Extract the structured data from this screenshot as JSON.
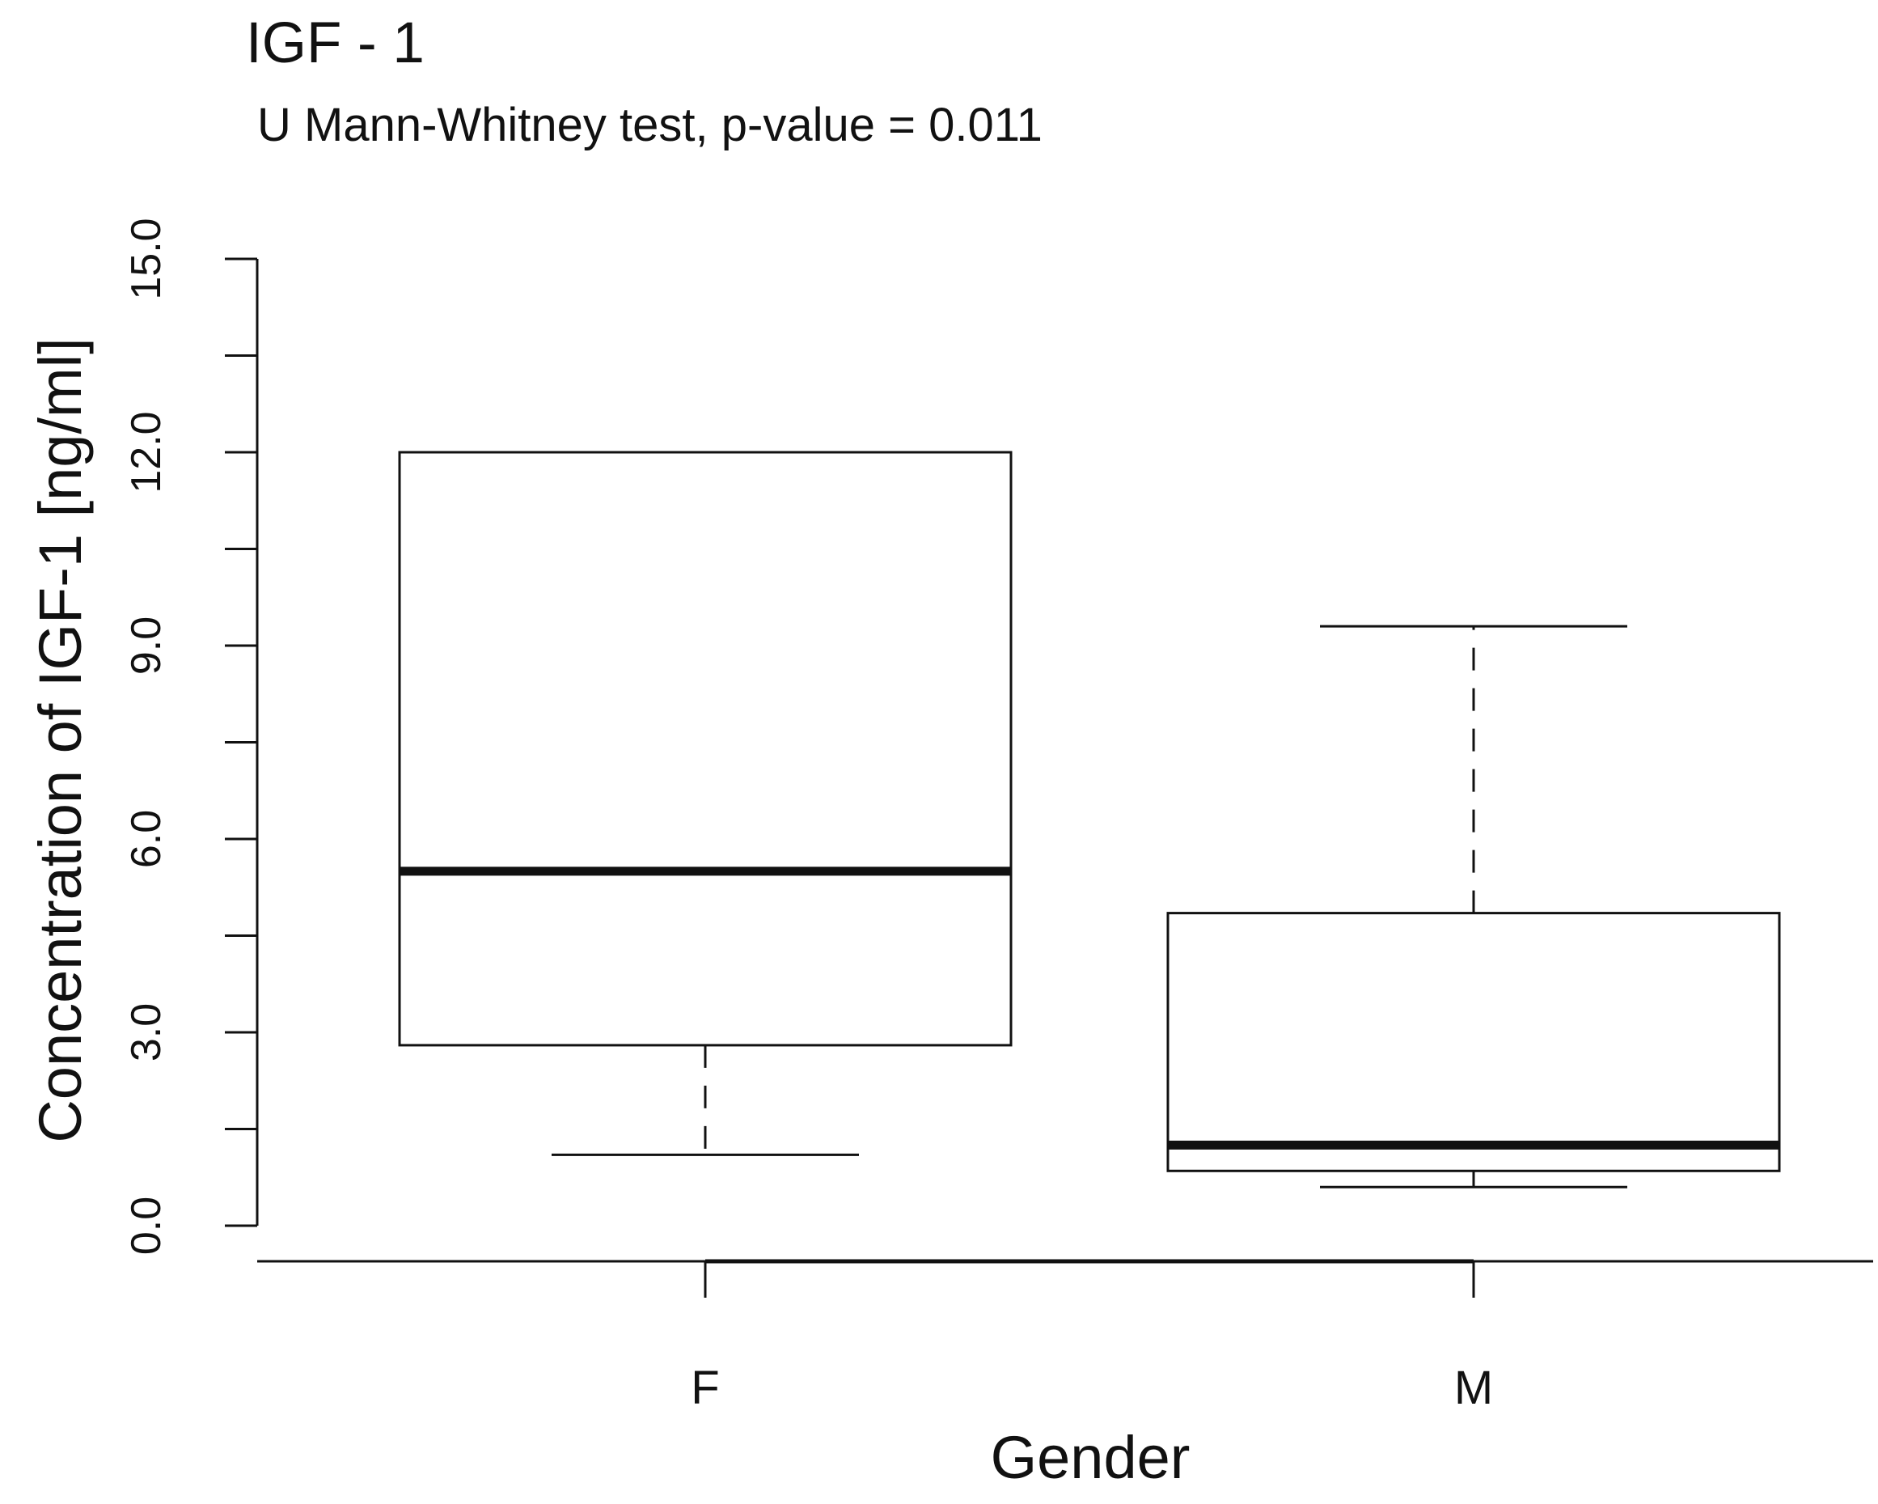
{
  "chart_data": {
    "type": "box",
    "title": "IGF - 1",
    "subtitle": "U Mann-Whitney test, p-value = 0.011",
    "xlabel": "Gender",
    "ylabel": "Concentration of IGF-1 [ng/ml]",
    "categories": [
      "F",
      "M"
    ],
    "ylim": [
      0,
      15
    ],
    "yticks": [
      0,
      1.5,
      3,
      4.5,
      6,
      7.5,
      9,
      10.5,
      12,
      13.5,
      15
    ],
    "ytick_labels": [
      "0.0",
      "",
      "3.0",
      "",
      "6.0",
      "",
      "9.0",
      "",
      "12.0",
      "",
      "15.0"
    ],
    "boxes": [
      {
        "label": "F",
        "whisker_low": 1.1,
        "q1": 2.8,
        "median": 5.5,
        "q3": 12.0,
        "whisker_high": 12.0
      },
      {
        "label": "M",
        "whisker_low": 0.6,
        "q1": 0.85,
        "median": 1.25,
        "q3": 4.85,
        "whisker_high": 9.3
      }
    ],
    "grid": false,
    "legend": "none",
    "colors": {
      "line": "#111111",
      "background": "#ffffff"
    }
  }
}
